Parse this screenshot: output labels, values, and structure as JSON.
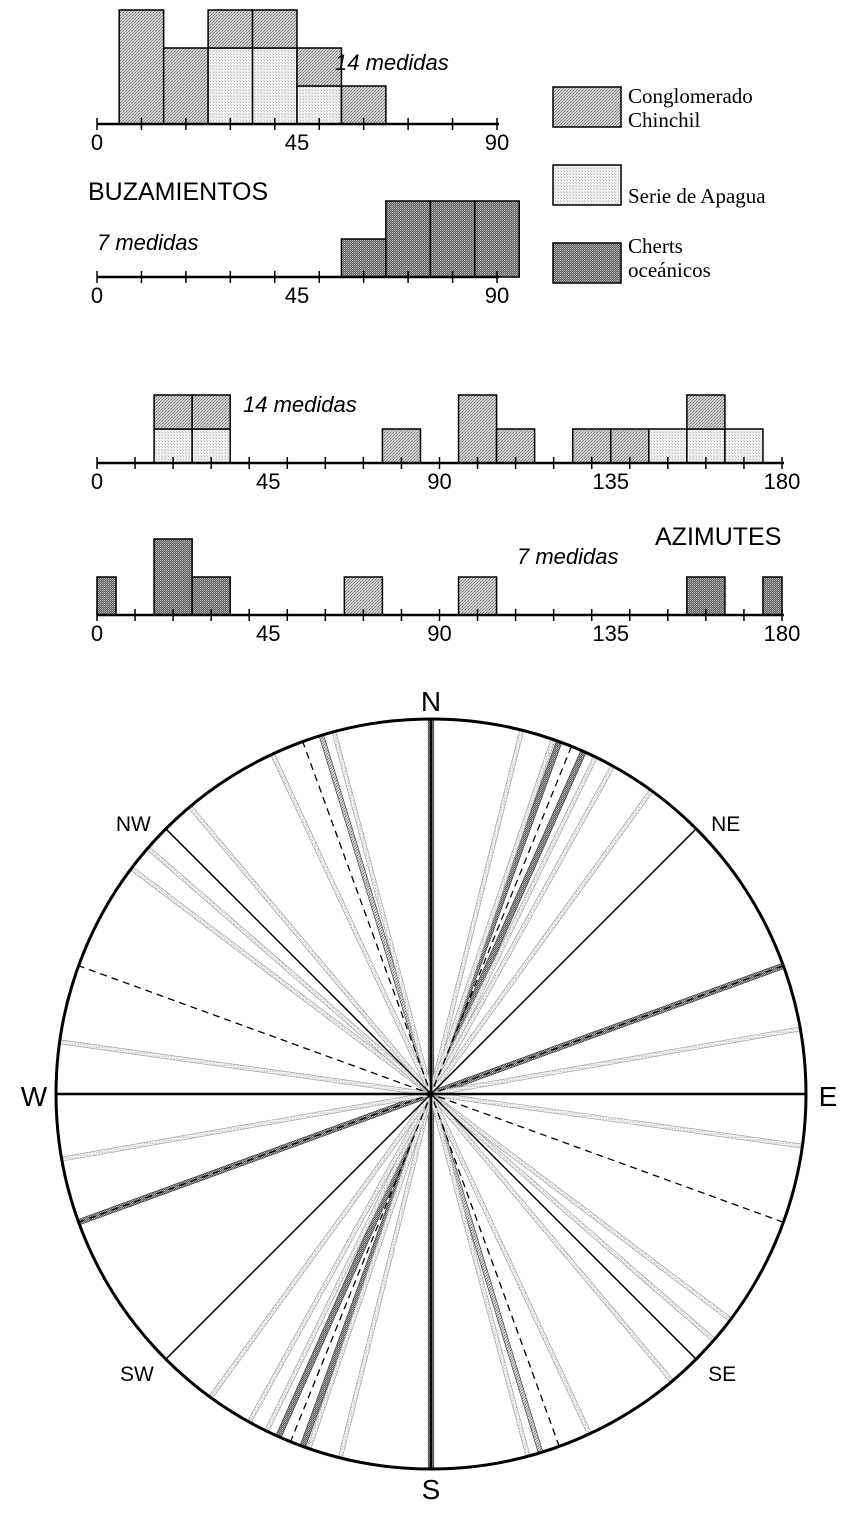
{
  "colors": {
    "conglomerado": "#b4b4b4",
    "apagua": "#e8e8e8",
    "cherts": "#7a7a7a",
    "ink": "#000000"
  },
  "legend": {
    "items": [
      {
        "key": "conglomerado",
        "lines": [
          "Conglomerado",
          "Chinchil"
        ]
      },
      {
        "key": "apagua",
        "lines": [
          "Serie de Apagua"
        ]
      },
      {
        "key": "cherts",
        "lines": [
          "Cherts",
          "oceánicos"
        ]
      }
    ]
  },
  "section_titles": {
    "buzamientos": "BUZAMIENTOS",
    "azimutes": "AZIMUTES"
  },
  "chart_data": [
    {
      "type": "bar",
      "title": "",
      "section": "BUZAMIENTOS",
      "count_label": "14 medidas",
      "xlim": [
        0,
        90
      ],
      "tick_labels": [
        "0",
        "45",
        "90"
      ],
      "bin_width": 10,
      "bars": [
        {
          "x0": 5,
          "stack": [
            {
              "series": "conglomerado",
              "h": 3
            }
          ]
        },
        {
          "x0": 15,
          "stack": [
            {
              "series": "conglomerado",
              "h": 2
            }
          ]
        },
        {
          "x0": 25,
          "stack": [
            {
              "series": "apagua",
              "h": 2
            },
            {
              "series": "conglomerado",
              "h": 1
            }
          ]
        },
        {
          "x0": 35,
          "stack": [
            {
              "series": "apagua",
              "h": 2
            },
            {
              "series": "conglomerado",
              "h": 1
            }
          ]
        },
        {
          "x0": 45,
          "stack": [
            {
              "series": "apagua",
              "h": 1
            },
            {
              "series": "conglomerado",
              "h": 1
            }
          ]
        },
        {
          "x0": 55,
          "stack": [
            {
              "series": "conglomerado",
              "h": 1
            }
          ]
        }
      ]
    },
    {
      "type": "bar",
      "title": "",
      "section": "BUZAMIENTOS",
      "count_label": "7 medidas",
      "xlim": [
        0,
        90
      ],
      "tick_labels": [
        "0",
        "45",
        "90"
      ],
      "bin_width": 10,
      "bars": [
        {
          "x0": 55,
          "stack": [
            {
              "series": "cherts",
              "h": 1
            }
          ]
        },
        {
          "x0": 65,
          "stack": [
            {
              "series": "cherts",
              "h": 2
            }
          ]
        },
        {
          "x0": 75,
          "stack": [
            {
              "series": "cherts",
              "h": 2
            }
          ]
        },
        {
          "x0": 85,
          "stack": [
            {
              "series": "cherts",
              "h": 2
            }
          ]
        }
      ]
    },
    {
      "type": "bar",
      "title": "",
      "section": "AZIMUTES",
      "count_label": "14 medidas",
      "xlim": [
        0,
        180
      ],
      "tick_labels": [
        "0",
        "45",
        "90",
        "135",
        "180"
      ],
      "bin_width": 10,
      "bars": [
        {
          "x0": 15,
          "stack": [
            {
              "series": "apagua",
              "h": 1
            },
            {
              "series": "conglomerado",
              "h": 1
            }
          ]
        },
        {
          "x0": 25,
          "stack": [
            {
              "series": "apagua",
              "h": 1
            },
            {
              "series": "conglomerado",
              "h": 1
            }
          ]
        },
        {
          "x0": 75,
          "stack": [
            {
              "series": "conglomerado",
              "h": 1
            }
          ]
        },
        {
          "x0": 95,
          "stack": [
            {
              "series": "conglomerado",
              "h": 2
            }
          ]
        },
        {
          "x0": 105,
          "stack": [
            {
              "series": "conglomerado",
              "h": 1
            }
          ]
        },
        {
          "x0": 125,
          "stack": [
            {
              "series": "conglomerado",
              "h": 1
            }
          ]
        },
        {
          "x0": 135,
          "stack": [
            {
              "series": "conglomerado",
              "h": 1
            }
          ]
        },
        {
          "x0": 145,
          "stack": [
            {
              "series": "apagua",
              "h": 1
            }
          ]
        },
        {
          "x0": 155,
          "stack": [
            {
              "series": "apagua",
              "h": 1
            },
            {
              "series": "conglomerado",
              "h": 1
            }
          ]
        },
        {
          "x0": 165,
          "stack": [
            {
              "series": "apagua",
              "h": 1
            }
          ]
        }
      ]
    },
    {
      "type": "bar",
      "title": "",
      "section": "AZIMUTES",
      "count_label": "7 medidas",
      "xlim": [
        0,
        180
      ],
      "tick_labels": [
        "0",
        "45",
        "90",
        "135",
        "180"
      ],
      "bin_width": 10,
      "bars": [
        {
          "x0": 0,
          "w": 5,
          "stack": [
            {
              "series": "cherts",
              "h": 1
            }
          ]
        },
        {
          "x0": 15,
          "stack": [
            {
              "series": "cherts",
              "h": 2
            }
          ]
        },
        {
          "x0": 25,
          "stack": [
            {
              "series": "cherts",
              "h": 1
            }
          ]
        },
        {
          "x0": 65,
          "stack": [
            {
              "series": "conglomerado",
              "h": 1
            }
          ]
        },
        {
          "x0": 95,
          "stack": [
            {
              "series": "conglomerado",
              "h": 1
            }
          ]
        },
        {
          "x0": 155,
          "stack": [
            {
              "series": "cherts",
              "h": 1
            }
          ]
        },
        {
          "x0": 175,
          "w": 5,
          "stack": [
            {
              "series": "cherts",
              "h": 1
            }
          ]
        }
      ]
    },
    {
      "type": "rose",
      "title": "",
      "directions": [
        {
          "label": "N",
          "az": 0
        },
        {
          "label": "NE",
          "az": 45
        },
        {
          "label": "E",
          "az": 90
        },
        {
          "label": "SE",
          "az": 135
        },
        {
          "label": "S",
          "az": 180
        },
        {
          "label": "SW",
          "az": 225
        },
        {
          "label": "W",
          "az": 270
        },
        {
          "label": "NW",
          "az": 315
        }
      ],
      "reference_lines": [
        0,
        45,
        90,
        135
      ],
      "strikes": [
        {
          "az": 0,
          "style": "cherts"
        },
        {
          "az": 20,
          "style": "cherts"
        },
        {
          "az": 24,
          "style": "cherts"
        },
        {
          "az": 70,
          "style": "cherts"
        },
        {
          "az": 163,
          "style": "conglomerado"
        },
        {
          "az": 14,
          "style": "apagua"
        },
        {
          "az": 19,
          "style": "apagua"
        },
        {
          "az": 26,
          "style": "apagua"
        },
        {
          "az": 29,
          "style": "apagua"
        },
        {
          "az": 36,
          "style": "apagua"
        },
        {
          "az": 80,
          "style": "apagua"
        },
        {
          "az": 98,
          "style": "apagua"
        },
        {
          "az": 127,
          "style": "apagua"
        },
        {
          "az": 131,
          "style": "apagua"
        },
        {
          "az": 140,
          "style": "apagua"
        },
        {
          "az": 155,
          "style": "apagua"
        },
        {
          "az": 165,
          "style": "apagua"
        },
        {
          "az": 22,
          "style": "dashed"
        },
        {
          "az": 70,
          "style": "dashed"
        },
        {
          "az": 110,
          "style": "dashed"
        },
        {
          "az": 160,
          "style": "dashed"
        }
      ]
    }
  ]
}
